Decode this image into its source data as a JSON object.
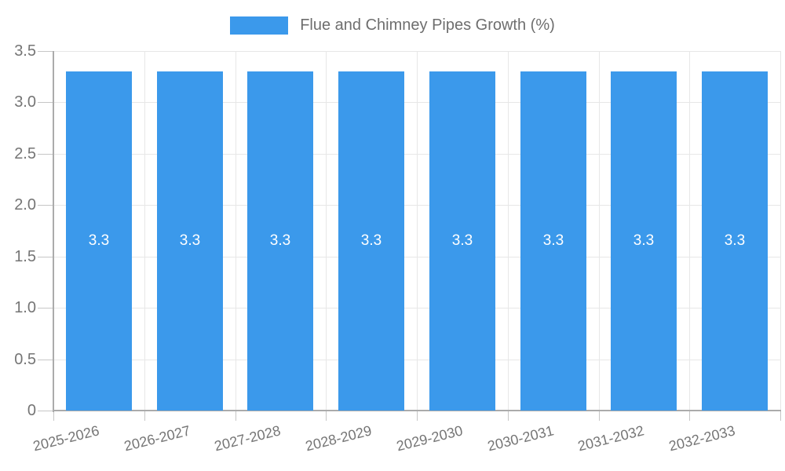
{
  "legend": {
    "label": "Flue and Chimney Pipes Growth (%)"
  },
  "chart_data": {
    "type": "bar",
    "title": "",
    "categories": [
      "2025-2026",
      "2026-2027",
      "2027-2028",
      "2028-2029",
      "2029-2030",
      "2030-2031",
      "2031-2032",
      "2032-2033"
    ],
    "series": [
      {
        "name": "Flue and Chimney Pipes Growth (%)",
        "values": [
          3.3,
          3.3,
          3.3,
          3.3,
          3.3,
          3.3,
          3.3,
          3.3
        ]
      }
    ],
    "bar_value_labels": [
      "3.3",
      "3.3",
      "3.3",
      "3.3",
      "3.3",
      "3.3",
      "3.3",
      "3.3"
    ],
    "ylim": [
      0,
      3.5
    ],
    "yticks": [
      0,
      0.5,
      1.0,
      1.5,
      2.0,
      2.5,
      3.0,
      3.5
    ],
    "ytick_labels": [
      "0",
      "0.5",
      "1.0",
      "1.5",
      "2.0",
      "2.5",
      "3.0",
      "3.5"
    ],
    "grid": true,
    "legend_position": "top",
    "xlabel": "",
    "ylabel": "",
    "colors": {
      "bar": "#3b99eb",
      "bar_label_text": "#ffffff",
      "axis_line": "#ababab",
      "gridline": "#e7e7e7",
      "tick_mark": "#c6c6c6",
      "tick_label_text": "#757575",
      "legend_text": "#6e6e6e"
    }
  }
}
